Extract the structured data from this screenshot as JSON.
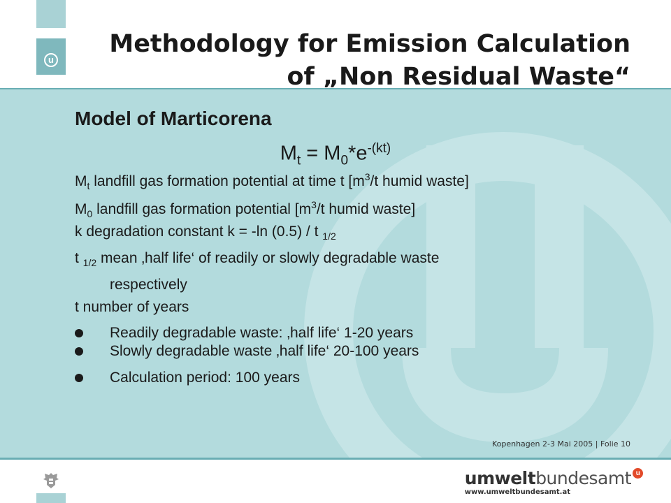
{
  "header": {
    "title_line1": "Methodology for Emission Calculation",
    "title_line2": "of „Non Residual Waste“",
    "logo_letter": "u"
  },
  "content": {
    "subtitle": "Model of  Marticorena",
    "formula": {
      "lhs": "M",
      "lhs_sub": "t",
      "eq": " = M",
      "m_sub": "0",
      "rest": "*e",
      "exp": "-(kt)"
    },
    "definitions": [
      {
        "symbol": "M",
        "sub": "t",
        "text": " landfill gas formation potential at time t  [m",
        "sup": "3",
        "tail": "/t humid waste]"
      },
      {
        "symbol": "M",
        "sub": "0",
        "text": " landfill gas formation potential  [m",
        "sup": "3",
        "tail": "/t humid waste]"
      },
      {
        "text": "k   degradation constant   k = -ln (0.5) / t ",
        "sub": "1/2"
      },
      {
        "symbol": "t ",
        "sub": "1/2",
        "text": "  mean ‚half  life‘ of readily or slowly degradable waste",
        "line2": "respectively"
      },
      {
        "text": "t   number of years"
      }
    ],
    "bullets": [
      "Readily degradable waste: ‚half  life‘ 1-20 years",
      "Slowly degradable waste ‚half  life‘ 20-100 years",
      "Calculation period: 100 years"
    ]
  },
  "footer": {
    "text": "Kopenhagen 2-3 Mai 2005  |  Folie 10",
    "brand_strong": "umwelt",
    "brand_light": "bundesamt",
    "brand_mark": "u",
    "brand_url": "www.umweltbundesamt.at"
  },
  "colors": {
    "panel": "#b3dbdd",
    "accent": "#6aaeb4",
    "brand_red": "#e24a2a"
  }
}
